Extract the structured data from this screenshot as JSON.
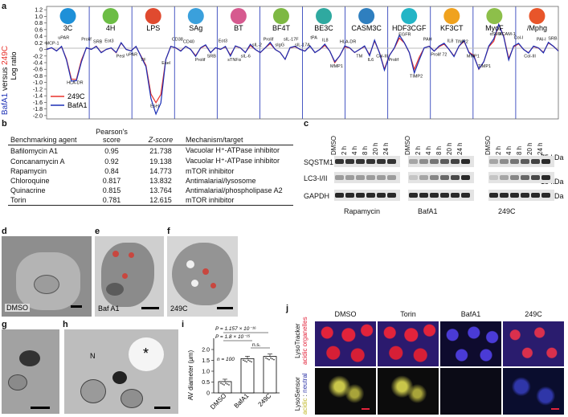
{
  "panels": {
    "a": "a",
    "b": "b",
    "c": "c",
    "d": "d",
    "e": "e",
    "f": "f",
    "g": "g",
    "h": "h",
    "i": "i",
    "j": "j"
  },
  "panel_a": {
    "ylabel_blue": "BafA1",
    "ylabel_mid": " versus ",
    "ylabel_red": "249C",
    "ylabel_right": "Log ratio",
    "yticks": [
      "1.2",
      "1.0",
      "0.8",
      "0.6",
      "0.4",
      "0.2",
      "0",
      "-0.2",
      "-0.4",
      "-0.6",
      "-0.8",
      "-1.0",
      "-1.2",
      "-1.4",
      "-1.6",
      "-1.8",
      "-2.0"
    ],
    "systems": [
      "3C",
      "4H",
      "LPS",
      "SAg",
      "BT",
      "BF4T",
      "BE3C",
      "CASM3C",
      "HDF3CGF",
      "KF3CT",
      "MyoF",
      "/Mphg"
    ],
    "system_colors": [
      "#1e90d8",
      "#6cbd45",
      "#e04a2f",
      "#3aa0dc",
      "#d65a8f",
      "#7db843",
      "#2fa9a0",
      "#2f7fbf",
      "#23b5c6",
      "#f0a21e",
      "#8dbf4a",
      "#e8552a"
    ],
    "legend": [
      {
        "label": "249C",
        "color": "#e8322b"
      },
      {
        "label": "BafA1",
        "color": "#1b2fb5"
      }
    ],
    "annotations": [
      "MCP-1",
      "uPAR",
      "HLA-DR",
      "Prolif",
      "SRB",
      "Eot3",
      "Pesl",
      "uPAR",
      "TF",
      "Esel",
      "Esel",
      "CD38",
      "CD40",
      "Prolif",
      "SRB",
      "Eot3",
      "sTNFα",
      "sIL-6",
      "sIL-2",
      "Prolif",
      "sIgG",
      "sIL-17F",
      "sIL-17A",
      "tPA",
      "IL8",
      "MMP1",
      "HLA-DR",
      "TM",
      "IL6",
      "Col-III",
      "Prolif",
      "EGFR",
      "TIMP2",
      "PAH",
      "Prolif 72",
      "IL8",
      "TIMP2",
      "MMP1",
      "TIMP1",
      "αSMA",
      "VCAM-1",
      "Col-I",
      "Col-III",
      "PAI-I",
      "SRB"
    ]
  },
  "panel_b": {
    "headers": [
      "Benchmarking agent",
      "Pearson's score",
      "Z-score",
      "Mechanism/target"
    ],
    "rows": [
      [
        "Bafilomycin A1",
        "0.95",
        "21.738",
        "Vacuolar H⁺-ATPase inhibitor"
      ],
      [
        "Concanamycin A",
        "0.92",
        "19.138",
        "Vacuolar H⁺-ATPase inhibitor"
      ],
      [
        "Rapamycin",
        "0.84",
        "14.773",
        "mTOR inhibitor"
      ],
      [
        "Chloroquine",
        "0.817",
        "13.832",
        "Antimalarial/lysosome"
      ],
      [
        "Quinacrine",
        "0.815",
        "13.764",
        "Antimalarial/phospholipase A2"
      ],
      [
        "Torin",
        "0.781",
        "12.615",
        "mTOR inhibitor"
      ]
    ]
  },
  "panel_c": {
    "lanes": [
      "DMSO",
      "2 h",
      "4 h",
      "8 h",
      "20 h",
      "24 h"
    ],
    "proteins": [
      "SQSTM1",
      "LC3-I/II",
      "GAPDH"
    ],
    "markers": [
      "75 kDa",
      "15 kDa",
      "37 kDa"
    ],
    "groups": [
      "Rapamycin",
      "BafA1",
      "249C"
    ]
  },
  "panel_def": {
    "d_label": "DMSO",
    "e_label": "Baf A1",
    "f_label": "249C"
  },
  "panel_h": {
    "n_label": "N"
  },
  "panel_i": {
    "ylabel": "AV diameter (μm)",
    "yticks": [
      "0",
      "0.5",
      "1.0",
      "1.5",
      "2.0"
    ],
    "p1": "P = 1.157 × 10⁻¹⁶",
    "p2": "P = 1.8 × 10⁻¹⁵",
    "ns": "n.s.",
    "n": "n = 100",
    "categories": [
      "DMSO",
      "BafA1",
      "249C"
    ],
    "values": [
      0.52,
      1.58,
      1.68
    ]
  },
  "chart_data": {
    "type": "bar",
    "categories": [
      "DMSO",
      "BafA1",
      "249C"
    ],
    "values": [
      0.52,
      1.58,
      1.68
    ],
    "ylabel": "AV diameter (μm)",
    "ylim": [
      0,
      2.0
    ]
  },
  "panel_j": {
    "columns": [
      "DMSO",
      "Torin",
      "BafA1",
      "249C"
    ],
    "row1_a": "LysoTracker",
    "row1_b": "acidic organelles",
    "row2_a": "LysoSensor",
    "row2_b1": "acidic",
    "row2_b2": " : ",
    "row2_b3": "neutral"
  }
}
